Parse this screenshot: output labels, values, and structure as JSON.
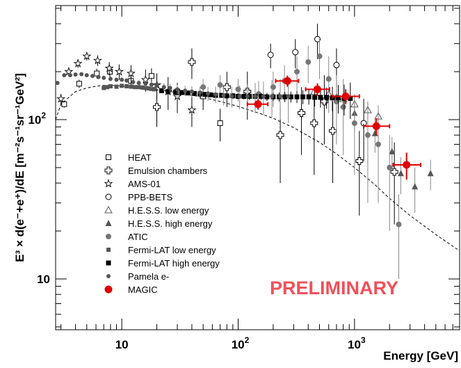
{
  "chart_data": {
    "type": "scatter",
    "xlabel": "Energy [GeV]",
    "ylabel": "E³ × d(e⁻+e⁺)/dE [m⁻²s⁻¹sr⁻¹GeV²]",
    "xscale": "log",
    "yscale": "log",
    "xlim": [
      2.7,
      8000
    ],
    "ylim": [
      4.8,
      520
    ],
    "x_tick_labels": [
      {
        "value": 10,
        "label": "10"
      },
      {
        "value": 100,
        "label": "10",
        "exp": "2"
      },
      {
        "value": 1000,
        "label": "10",
        "exp": "3"
      }
    ],
    "y_tick_labels": [
      {
        "value": 10,
        "label": "10"
      },
      {
        "value": 100,
        "label": "10",
        "exp": "2"
      }
    ],
    "annotation": "PRELIMINARY",
    "annotation_color": "#f0505a",
    "legend_position": "left",
    "model_curve": {
      "style": "dashed",
      "points": [
        [
          2.7,
          100
        ],
        [
          3,
          125
        ],
        [
          4,
          150
        ],
        [
          5,
          158
        ],
        [
          6,
          162
        ],
        [
          7,
          164
        ],
        [
          8,
          164
        ],
        [
          10,
          163
        ],
        [
          15,
          158
        ],
        [
          20,
          154
        ],
        [
          30,
          148
        ],
        [
          50,
          138
        ],
        [
          70,
          130
        ],
        [
          100,
          121
        ],
        [
          150,
          110
        ],
        [
          200,
          102
        ],
        [
          300,
          89
        ],
        [
          500,
          72
        ],
        [
          700,
          61
        ],
        [
          1000,
          50
        ],
        [
          1500,
          39
        ],
        [
          2000,
          32
        ],
        [
          3000,
          25
        ],
        [
          5000,
          19
        ],
        [
          8000,
          15
        ]
      ]
    },
    "series": [
      {
        "name": "HEAT",
        "marker": "open-square",
        "color": "#000000",
        "points": [
          [
            3.2,
            125,
            6
          ],
          [
            4.3,
            168,
            10
          ],
          [
            6.1,
            195,
            14
          ],
          [
            7.9,
            200,
            18
          ],
          [
            12,
            175,
            15
          ],
          [
            18,
            188,
            22
          ],
          [
            30,
            150,
            20
          ],
          [
            50,
            140,
            25
          ],
          [
            70,
            95,
            22
          ]
        ]
      },
      {
        "name": "Emulsion chambers",
        "marker": "open-cross",
        "color": "#000000",
        "points": [
          [
            20,
            120,
            30
          ],
          [
            40,
            230,
            50
          ],
          [
            80,
            160,
            40
          ],
          [
            120,
            150,
            50
          ],
          [
            230,
            80,
            40
          ],
          [
            350,
            110,
            50
          ],
          [
            450,
            95,
            50
          ],
          [
            550,
            130,
            60
          ],
          [
            650,
            85,
            45
          ],
          [
            1100,
            55,
            30
          ],
          [
            2200,
            47,
            25
          ]
        ]
      },
      {
        "name": "AMS-01",
        "marker": "open-star",
        "color": "#000000",
        "points": [
          [
            3.0,
            135,
            10
          ],
          [
            3.5,
            200,
            12
          ],
          [
            4.2,
            225,
            14
          ],
          [
            5.0,
            250,
            15
          ],
          [
            6.2,
            235,
            18
          ],
          [
            7.8,
            210,
            20
          ],
          [
            9.5,
            200,
            22
          ],
          [
            12,
            195,
            25
          ],
          [
            16,
            178,
            28
          ],
          [
            20,
            165,
            30
          ],
          [
            25,
            150,
            35
          ],
          [
            30,
            140,
            30
          ],
          [
            40,
            115,
            25
          ]
        ]
      },
      {
        "name": "PPB-BETS",
        "marker": "open-circle",
        "color": "#000000",
        "points": [
          [
            190,
            255,
            45
          ],
          [
            310,
            265,
            55
          ],
          [
            480,
            320,
            80
          ],
          [
            700,
            220,
            60
          ],
          [
            1200,
            95,
            40
          ]
        ]
      },
      {
        "name": "H.E.S.S. low energy",
        "marker": "open-triangle",
        "color": "#555555",
        "points": [
          [
            450,
            150,
            12
          ],
          [
            600,
            145,
            12
          ],
          [
            800,
            135,
            12
          ],
          [
            1000,
            125,
            12
          ],
          [
            1300,
            115,
            15
          ],
          [
            1600,
            105,
            18
          ]
        ]
      },
      {
        "name": "H.E.S.S. high energy",
        "marker": "filled-triangle",
        "color": "#555555",
        "points": [
          [
            700,
            140,
            30
          ],
          [
            1000,
            110,
            25
          ],
          [
            1500,
            82,
            20
          ],
          [
            2100,
            63,
            15
          ],
          [
            2500,
            46,
            12
          ],
          [
            3300,
            38,
            12
          ],
          [
            4500,
            46,
            10
          ]
        ]
      },
      {
        "name": "ATIC",
        "marker": "filled-circle",
        "color": "#777777",
        "points": [
          [
            30,
            150,
            15
          ],
          [
            50,
            160,
            20
          ],
          [
            70,
            165,
            25
          ],
          [
            100,
            155,
            25
          ],
          [
            150,
            145,
            30
          ],
          [
            200,
            160,
            40
          ],
          [
            250,
            175,
            45
          ],
          [
            320,
            200,
            50
          ],
          [
            400,
            230,
            60
          ],
          [
            500,
            250,
            70
          ],
          [
            600,
            180,
            70
          ],
          [
            700,
            130,
            60
          ],
          [
            800,
            120,
            60
          ],
          [
            1000,
            95,
            50
          ],
          [
            1300,
            80,
            50
          ],
          [
            1600,
            70,
            40
          ],
          [
            2000,
            50,
            30
          ],
          [
            2400,
            22,
            12
          ]
        ]
      },
      {
        "name": "Fermi-LAT low energy",
        "marker": "filled-square",
        "color": "#555555",
        "points": [
          [
            7,
            158,
            4
          ],
          [
            7.5,
            160,
            4
          ],
          [
            8,
            162,
            4
          ],
          [
            9,
            161,
            4
          ],
          [
            10,
            163,
            4
          ],
          [
            11,
            162,
            4
          ],
          [
            12,
            161,
            4
          ],
          [
            13,
            160,
            4
          ],
          [
            14,
            160,
            4
          ],
          [
            15,
            159,
            4
          ],
          [
            16,
            158,
            4
          ],
          [
            17,
            157,
            4
          ],
          [
            18,
            156,
            4
          ],
          [
            19,
            155,
            4
          ]
        ]
      },
      {
        "name": "Fermi-LAT high energy",
        "marker": "filled-square-black",
        "color": "#000000",
        "points": [
          [
            22,
            152,
            5
          ],
          [
            25,
            150,
            5
          ],
          [
            29,
            149,
            5
          ],
          [
            33,
            148,
            5
          ],
          [
            37,
            147,
            5
          ],
          [
            42,
            146,
            5
          ],
          [
            47,
            145,
            5
          ],
          [
            52,
            144,
            5
          ],
          [
            58,
            143,
            5
          ],
          [
            64,
            142,
            5
          ],
          [
            72,
            142,
            5
          ],
          [
            80,
            141,
            5
          ],
          [
            90,
            141,
            6
          ],
          [
            100,
            140,
            6
          ],
          [
            112,
            140,
            6
          ],
          [
            125,
            140,
            7
          ],
          [
            140,
            140,
            7
          ],
          [
            158,
            140,
            7
          ],
          [
            177,
            139,
            8
          ],
          [
            200,
            139,
            8
          ],
          [
            225,
            139,
            9
          ],
          [
            252,
            139,
            10
          ],
          [
            284,
            139,
            11
          ],
          [
            320,
            139,
            12
          ],
          [
            360,
            139,
            14
          ],
          [
            405,
            139,
            15
          ],
          [
            455,
            138,
            17
          ],
          [
            510,
            138,
            19
          ],
          [
            575,
            138,
            21
          ],
          [
            645,
            137,
            24
          ],
          [
            725,
            137,
            28
          ],
          [
            815,
            136,
            30
          ],
          [
            920,
            136,
            35
          ]
        ]
      },
      {
        "name": "Pamela e-",
        "marker": "small-dot",
        "color": "#555555",
        "points": [
          [
            2.8,
            170,
            4
          ],
          [
            3.2,
            190,
            4
          ],
          [
            3.6,
            190,
            4
          ],
          [
            4.0,
            192,
            4
          ],
          [
            4.5,
            193,
            4
          ],
          [
            5.0,
            190,
            4
          ],
          [
            5.6,
            188,
            4
          ],
          [
            6.3,
            185,
            4
          ],
          [
            7.0,
            183,
            5
          ],
          [
            8.0,
            180,
            5
          ],
          [
            9.0,
            178,
            5
          ],
          [
            10,
            178,
            5
          ],
          [
            11,
            176,
            6
          ],
          [
            12.5,
            172,
            6
          ],
          [
            14,
            170,
            7
          ],
          [
            16,
            168,
            7
          ],
          [
            18,
            166,
            8
          ],
          [
            20,
            164,
            8
          ],
          [
            23,
            160,
            9
          ],
          [
            26,
            158,
            10
          ],
          [
            30,
            155,
            10
          ],
          [
            35,
            152,
            11
          ],
          [
            40,
            150,
            12
          ],
          [
            47,
            148,
            13
          ],
          [
            55,
            146,
            15
          ],
          [
            64,
            144,
            17
          ],
          [
            75,
            142,
            19
          ],
          [
            88,
            140,
            21
          ],
          [
            103,
            140,
            24
          ],
          [
            120,
            140,
            27
          ],
          [
            140,
            140,
            30
          ],
          [
            165,
            140,
            33
          ],
          [
            195,
            140,
            37
          ],
          [
            230,
            140,
            40
          ],
          [
            270,
            140,
            45
          ]
        ]
      },
      {
        "name": "MAGIC",
        "marker": "big-red-circle",
        "color": "#e00000",
        "points": [
          [
            148,
            125,
            9,
            120,
            180
          ],
          [
            265,
            175,
            14,
            210,
            330
          ],
          [
            480,
            155,
            14,
            380,
            610
          ],
          [
            840,
            140,
            15,
            650,
            1100
          ],
          [
            1540,
            91,
            11,
            1200,
            2000
          ],
          [
            2800,
            52,
            10,
            2150,
            3700
          ]
        ]
      }
    ]
  }
}
